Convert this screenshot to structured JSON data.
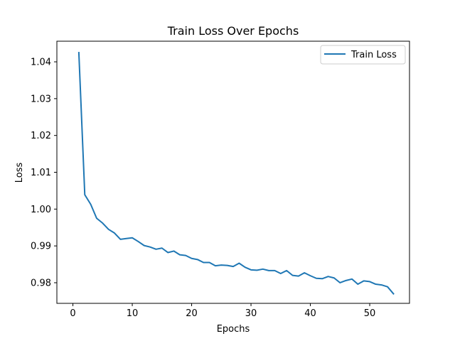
{
  "chart_data": {
    "type": "line",
    "title": "Train Loss Over Epochs",
    "xlabel": "Epochs",
    "ylabel": "Loss",
    "xlim": [
      -2.7,
      56.7
    ],
    "ylim": [
      0.9744,
      1.0456
    ],
    "xticks": [
      0,
      10,
      20,
      30,
      40,
      50
    ],
    "yticks": [
      0.98,
      0.99,
      1.0,
      1.01,
      1.02,
      1.03,
      1.04
    ],
    "ytick_labels": [
      "0.98",
      "0.99",
      "1.00",
      "1.01",
      "1.02",
      "1.03",
      "1.04"
    ],
    "grid": false,
    "legend_position": "upper right",
    "series": [
      {
        "name": "Train Loss",
        "color": "#1f77b4",
        "x": [
          1,
          2,
          3,
          4,
          5,
          6,
          7,
          8,
          9,
          10,
          11,
          12,
          13,
          14,
          15,
          16,
          17,
          18,
          19,
          20,
          21,
          22,
          23,
          24,
          25,
          26,
          27,
          28,
          29,
          30,
          31,
          32,
          33,
          34,
          35,
          36,
          37,
          38,
          39,
          40,
          41,
          42,
          43,
          44,
          45,
          46,
          47,
          48,
          49,
          50,
          51,
          52,
          53,
          54
        ],
        "values": [
          1.0425,
          1.0039,
          1.0013,
          0.9975,
          0.9962,
          0.9945,
          0.9935,
          0.9918,
          0.992,
          0.9922,
          0.9912,
          0.9901,
          0.9897,
          0.9891,
          0.9894,
          0.9882,
          0.9886,
          0.9876,
          0.9874,
          0.9866,
          0.9863,
          0.9855,
          0.9855,
          0.9846,
          0.9848,
          0.9847,
          0.9844,
          0.9853,
          0.9842,
          0.9835,
          0.9834,
          0.9837,
          0.9833,
          0.9833,
          0.9825,
          0.9833,
          0.982,
          0.9818,
          0.9827,
          0.9819,
          0.9812,
          0.9811,
          0.9817,
          0.9813,
          0.98,
          0.9806,
          0.981,
          0.9796,
          0.9805,
          0.9803,
          0.9796,
          0.9794,
          0.9789,
          0.977
        ]
      }
    ]
  }
}
